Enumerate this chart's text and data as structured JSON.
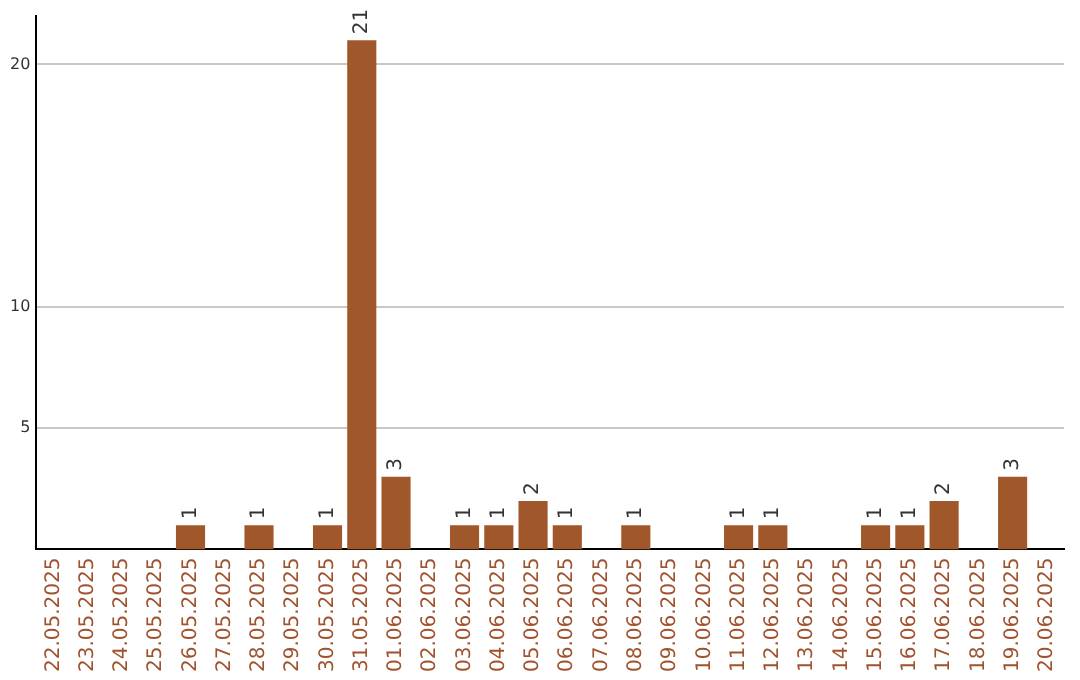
{
  "chart_data": {
    "type": "bar",
    "categories": [
      "22.05.2025",
      "23.05.2025",
      "24.05.2025",
      "25.05.2025",
      "26.05.2025",
      "27.05.2025",
      "28.05.2025",
      "29.05.2025",
      "30.05.2025",
      "31.05.2025",
      "01.06.2025",
      "02.06.2025",
      "03.06.2025",
      "04.06.2025",
      "05.06.2025",
      "06.06.2025",
      "07.06.2025",
      "08.06.2025",
      "09.06.2025",
      "10.06.2025",
      "11.06.2025",
      "12.06.2025",
      "13.06.2025",
      "14.06.2025",
      "15.06.2025",
      "16.06.2025",
      "17.06.2025",
      "18.06.2025",
      "19.06.2025",
      "20.06.2025"
    ],
    "values": [
      null,
      null,
      null,
      null,
      1,
      null,
      1,
      null,
      1,
      21,
      3,
      null,
      1,
      1,
      2,
      1,
      null,
      1,
      null,
      null,
      1,
      1,
      null,
      null,
      1,
      1,
      2,
      null,
      3,
      null
    ],
    "color": "#a0582a",
    "ylim": [
      0,
      22
    ],
    "yticks": [
      5,
      10,
      20
    ],
    "grid": "y",
    "data_labels": true
  }
}
